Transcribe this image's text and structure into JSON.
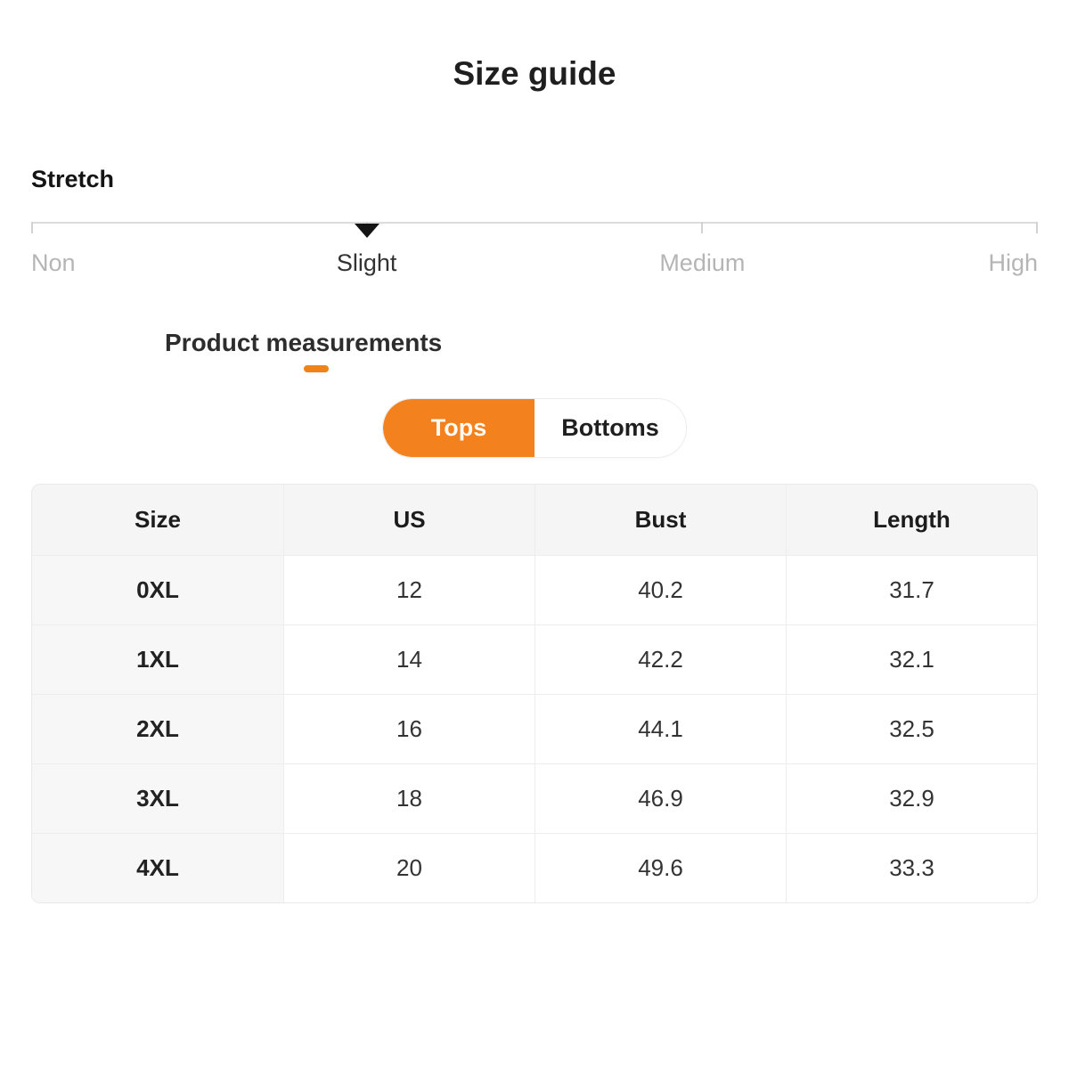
{
  "title": "Size guide",
  "colors": {
    "accent_orange": "#f3811e",
    "inactive_label_gray": "#b5b5b5",
    "dark_text": "#1f1f1f",
    "table_header_bg": "#f5f5f6"
  },
  "stretch": {
    "label": "Stretch",
    "selected": "Slight",
    "options": [
      {
        "label": "Non",
        "active": false
      },
      {
        "label": "Slight",
        "active": true
      },
      {
        "label": "Medium",
        "active": false
      },
      {
        "label": "High",
        "active": false
      }
    ]
  },
  "measurements": {
    "heading": "Product measurements",
    "tabs": [
      {
        "label": "Tops",
        "active": true
      },
      {
        "label": "Bottoms",
        "active": false
      }
    ]
  },
  "size_table": {
    "columns": [
      "Size",
      "US",
      "Bust",
      "Length"
    ],
    "rows": [
      [
        "0XL",
        "12",
        "40.2",
        "31.7"
      ],
      [
        "1XL",
        "14",
        "42.2",
        "32.1"
      ],
      [
        "2XL",
        "16",
        "44.1",
        "32.5"
      ],
      [
        "3XL",
        "18",
        "46.9",
        "32.9"
      ],
      [
        "4XL",
        "20",
        "49.6",
        "33.3"
      ]
    ]
  }
}
